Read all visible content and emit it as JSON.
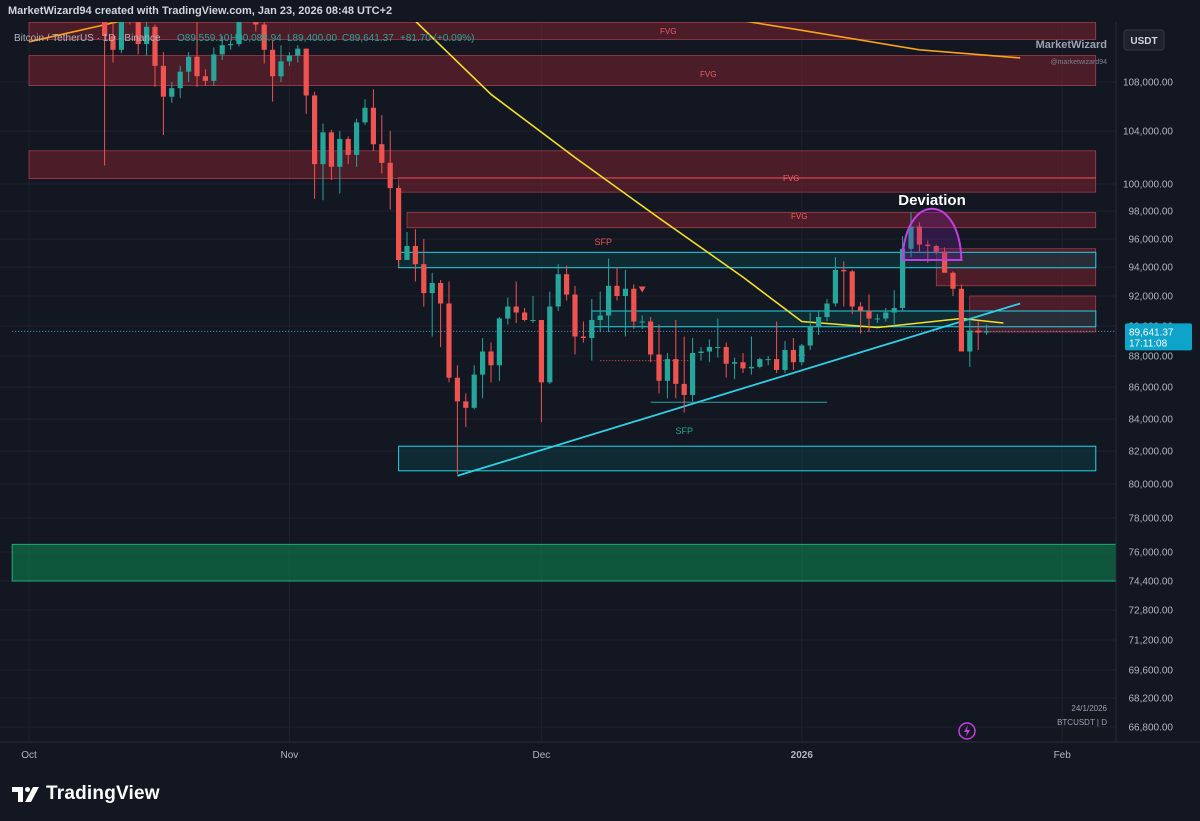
{
  "header": {
    "credit": "MarketWizard94 created with TradingView.com, Jan 23, 2026 08:48 UTC+2"
  },
  "legend": {
    "symbol": "Bitcoin / TetherUS · 1D · Binance",
    "open": "O89,559.10",
    "high": "H90,088.94",
    "low": "L89,400.00",
    "close": "C89,641.37",
    "change": "+81.70 (+0.09%)"
  },
  "watermark": {
    "name": "MarketWizard",
    "handle": "@marketwizard94"
  },
  "currency_button": "USDT",
  "annotations": {
    "deviation": "Deviation",
    "sfp_top": "SFP",
    "sfp_bottom": "SFP",
    "fvg": "FVG"
  },
  "price_tag": {
    "price": "89,641.37",
    "countdown": "17:11:08"
  },
  "bottom_info": {
    "date": "24/1/2026",
    "symbol": "BTCUSDT | D"
  },
  "footer": {
    "brand": "TradingView"
  },
  "colors": {
    "background": "#131722",
    "up": "#26a69a",
    "down": "#ef5350",
    "ema_slow": "#f7a21b",
    "ema_fast": "#f5e028",
    "zone_red": "#b22833",
    "zone_cyan": "#22d3e8",
    "zone_green": "#0f8a54",
    "deviation_arc": "#c13fe0"
  },
  "chart_data": {
    "type": "candlestick",
    "symbol": "BTCUSDT",
    "timeframe": "1D",
    "x_tick_labels": [
      "Oct",
      "Nov",
      "Dec",
      "2026",
      "Feb"
    ],
    "y_tick_labels": [
      "108,000.00",
      "104,000.00",
      "100,000.00",
      "98,000.00",
      "96,000.00",
      "94,000.00",
      "92,000.00",
      "90,000.00",
      "88,000.00",
      "86,000.00",
      "84,000.00",
      "82,000.00",
      "80,000.00",
      "78,000.00",
      "76,000.00",
      "74,400.00",
      "72,800.00",
      "71,200.00",
      "69,600.00",
      "68,200.00",
      "66,800.00"
    ],
    "ohlc": [
      [
        "2025-10-10",
        114800,
        115400,
        101400,
        112000
      ],
      [
        "2025-10-11",
        112000,
        113200,
        109700,
        110800
      ],
      [
        "2025-10-12",
        110800,
        115600,
        110500,
        115100
      ],
      [
        "2025-10-13",
        115100,
        115800,
        113000,
        114400
      ],
      [
        "2025-10-14",
        114400,
        114800,
        110400,
        111300
      ],
      [
        "2025-10-15",
        111300,
        113500,
        110300,
        112800
      ],
      [
        "2025-10-16",
        112800,
        113000,
        107600,
        109400
      ],
      [
        "2025-10-17",
        109400,
        110600,
        103700,
        106800
      ],
      [
        "2025-10-18",
        106800,
        108000,
        106300,
        107500
      ],
      [
        "2025-10-19",
        107500,
        109400,
        106700,
        108900
      ],
      [
        "2025-10-20",
        108900,
        110600,
        108000,
        110200
      ],
      [
        "2025-10-21",
        110200,
        114000,
        107600,
        108500
      ],
      [
        "2025-10-22",
        108500,
        109100,
        107700,
        108100
      ],
      [
        "2025-10-23",
        108100,
        111000,
        107700,
        110400
      ],
      [
        "2025-10-24",
        110400,
        112000,
        109900,
        111200
      ],
      [
        "2025-10-25",
        111200,
        111600,
        110800,
        111300
      ],
      [
        "2025-10-26",
        111300,
        115400,
        111100,
        114600
      ],
      [
        "2025-10-27",
        114600,
        116400,
        114000,
        115400
      ],
      [
        "2025-10-28",
        115400,
        116000,
        112400,
        113000
      ],
      [
        "2025-10-29",
        113000,
        113700,
        109600,
        110800
      ],
      [
        "2025-10-30",
        110800,
        111600,
        106400,
        108500
      ],
      [
        "2025-10-31",
        108500,
        111200,
        108000,
        109800
      ],
      [
        "2025-11-01",
        109800,
        110600,
        109400,
        110300
      ],
      [
        "2025-11-02",
        110300,
        111200,
        109700,
        110900
      ],
      [
        "2025-11-03",
        110900,
        110900,
        105400,
        106900
      ],
      [
        "2025-11-04",
        106900,
        107200,
        98900,
        101500
      ],
      [
        "2025-11-05",
        101500,
        104600,
        98800,
        103900
      ],
      [
        "2025-11-06",
        103900,
        104100,
        100300,
        101300
      ],
      [
        "2025-11-07",
        101300,
        104000,
        99300,
        103400
      ],
      [
        "2025-11-08",
        103400,
        103600,
        101500,
        102200
      ],
      [
        "2025-11-09",
        102200,
        105000,
        101300,
        104700
      ],
      [
        "2025-11-10",
        104700,
        106600,
        104500,
        105900
      ],
      [
        "2025-11-11",
        105900,
        107400,
        102500,
        103000
      ],
      [
        "2025-11-12",
        103000,
        105300,
        100800,
        101600
      ],
      [
        "2025-11-13",
        101600,
        104000,
        98100,
        99700
      ],
      [
        "2025-11-14",
        99700,
        99900,
        94000,
        94500
      ],
      [
        "2025-11-15",
        94500,
        96500,
        94500,
        95500
      ],
      [
        "2025-11-16",
        95500,
        96700,
        93000,
        94200
      ],
      [
        "2025-11-17",
        94200,
        96000,
        91300,
        92200
      ],
      [
        "2025-11-18",
        92200,
        93600,
        89300,
        92900
      ],
      [
        "2025-11-19",
        92900,
        93100,
        88600,
        91500
      ],
      [
        "2025-11-20",
        91500,
        93000,
        86300,
        86600
      ],
      [
        "2025-11-21",
        86600,
        87400,
        80600,
        85100
      ],
      [
        "2025-11-22",
        85100,
        85600,
        83500,
        84700
      ],
      [
        "2025-11-23",
        84700,
        87400,
        84600,
        86800
      ],
      [
        "2025-11-24",
        86800,
        89200,
        85300,
        88300
      ],
      [
        "2025-11-25",
        88300,
        88900,
        86300,
        87400
      ],
      [
        "2025-11-26",
        87400,
        90600,
        86400,
        90500
      ],
      [
        "2025-11-27",
        90500,
        91900,
        90100,
        91300
      ],
      [
        "2025-11-28",
        91300,
        93000,
        90200,
        90900
      ],
      [
        "2025-11-29",
        90900,
        91200,
        90300,
        90400
      ],
      [
        "2025-11-30",
        90400,
        92000,
        90200,
        90400
      ],
      [
        "2025-12-01",
        90400,
        90400,
        83800,
        86300
      ],
      [
        "2025-12-02",
        86300,
        92300,
        86200,
        91300
      ],
      [
        "2025-12-03",
        91300,
        94200,
        91000,
        93500
      ],
      [
        "2025-12-04",
        93500,
        94100,
        91700,
        92100
      ],
      [
        "2025-12-05",
        92100,
        92700,
        88100,
        89300
      ],
      [
        "2025-12-06",
        89300,
        90300,
        88900,
        89200
      ],
      [
        "2025-12-07",
        89200,
        91800,
        87700,
        90400
      ],
      [
        "2025-12-08",
        90400,
        92300,
        89600,
        90700
      ],
      [
        "2025-12-09",
        90700,
        94600,
        89600,
        92700
      ],
      [
        "2025-12-10",
        92700,
        94000,
        91700,
        92000
      ],
      [
        "2025-12-11",
        92000,
        93800,
        89300,
        92500
      ],
      [
        "2025-12-12",
        92500,
        92800,
        89800,
        90300
      ],
      [
        "2025-12-13",
        90300,
        90700,
        89800,
        90300
      ],
      [
        "2025-12-14",
        90300,
        90600,
        87600,
        88100
      ],
      [
        "2025-12-15",
        88100,
        90100,
        85600,
        86400
      ],
      [
        "2025-12-16",
        86400,
        88200,
        85300,
        87800
      ],
      [
        "2025-12-17",
        87800,
        90400,
        85300,
        86200
      ],
      [
        "2025-12-18",
        86200,
        89300,
        84400,
        85500
      ],
      [
        "2025-12-19",
        85500,
        89200,
        85100,
        88200
      ],
      [
        "2025-12-20",
        88200,
        88600,
        87700,
        88300
      ],
      [
        "2025-12-21",
        88300,
        89100,
        87600,
        88600
      ],
      [
        "2025-12-22",
        88600,
        90500,
        87900,
        88600
      ],
      [
        "2025-12-23",
        88600,
        88900,
        86600,
        87500
      ],
      [
        "2025-12-24",
        87500,
        87900,
        86500,
        87600
      ],
      [
        "2025-12-25",
        87600,
        88200,
        86900,
        87200
      ],
      [
        "2025-12-26",
        87200,
        89300,
        86800,
        87300
      ],
      [
        "2025-12-27",
        87300,
        87900,
        87200,
        87800
      ],
      [
        "2025-12-28",
        87800,
        88000,
        87400,
        87800
      ],
      [
        "2025-12-29",
        87800,
        90300,
        86900,
        87100
      ],
      [
        "2025-12-30",
        87100,
        89000,
        86900,
        88400
      ],
      [
        "2025-12-31",
        88400,
        89200,
        87100,
        87600
      ],
      [
        "2026-01-01",
        87600,
        88800,
        87400,
        88700
      ],
      [
        "2026-01-02",
        88700,
        90900,
        88400,
        90000
      ],
      [
        "2026-01-03",
        90000,
        91000,
        89400,
        90600
      ],
      [
        "2026-01-04",
        90600,
        91800,
        90300,
        91500
      ],
      [
        "2026-01-05",
        91500,
        94700,
        91300,
        93800
      ],
      [
        "2026-01-06",
        93800,
        94400,
        91300,
        93700
      ],
      [
        "2026-01-07",
        93700,
        93800,
        90800,
        91300
      ],
      [
        "2026-01-08",
        91300,
        91600,
        89500,
        91000
      ],
      [
        "2026-01-09",
        91000,
        92100,
        89600,
        90500
      ],
      [
        "2026-01-10",
        90500,
        90800,
        90200,
        90500
      ],
      [
        "2026-01-11",
        90500,
        91200,
        90300,
        90900
      ],
      [
        "2026-01-12",
        90900,
        92400,
        90000,
        91200
      ],
      [
        "2026-01-13",
        91200,
        96200,
        91000,
        95300
      ],
      [
        "2026-01-14",
        95300,
        97900,
        94700,
        96900
      ],
      [
        "2026-01-15",
        96900,
        97200,
        95100,
        95600
      ],
      [
        "2026-01-16",
        95600,
        95900,
        94300,
        95500
      ],
      [
        "2026-01-17",
        95500,
        95600,
        94900,
        95100
      ],
      [
        "2026-01-18",
        95100,
        95400,
        93700,
        93600
      ],
      [
        "2026-01-19",
        93600,
        93700,
        92000,
        92500
      ],
      [
        "2026-01-20",
        92500,
        92800,
        88300,
        88300
      ],
      [
        "2026-01-21",
        88300,
        90400,
        87300,
        89700
      ],
      [
        "2026-01-22",
        89700,
        90300,
        88400,
        89560
      ],
      [
        "2026-01-23",
        89559.1,
        90088.94,
        89400,
        89641.37
      ]
    ],
    "indicators": [
      {
        "kind": "moving average (orange)",
        "points": [
          [
            "2025-10-01",
            111500
          ],
          [
            "2025-10-15",
            113800
          ],
          [
            "2025-11-01",
            114900
          ],
          [
            "2025-11-15",
            115900
          ],
          [
            "2025-12-01",
            115600
          ],
          [
            "2025-12-15",
            114500
          ],
          [
            "2026-01-01",
            112500
          ],
          [
            "2026-01-15",
            110800
          ],
          [
            "2026-01-27",
            110100
          ]
        ]
      },
      {
        "kind": "moving average (yellow)",
        "points": [
          [
            "2025-11-03",
            116500
          ],
          [
            "2025-11-15",
            114000
          ],
          [
            "2025-11-25",
            107000
          ],
          [
            "2025-12-05",
            102000
          ],
          [
            "2025-12-15",
            97500
          ],
          [
            "2025-12-25",
            93300
          ],
          [
            "2026-01-01",
            90300
          ],
          [
            "2026-01-10",
            89900
          ],
          [
            "2026-01-20",
            90500
          ],
          [
            "2026-01-25",
            90200
          ]
        ]
      }
    ],
    "zones": [
      {
        "color": "red",
        "label": "FVG",
        "from": "2025-10-01",
        "to": "2026-02-05",
        "low": 111700,
        "high": 113200
      },
      {
        "color": "red",
        "label": "FVG",
        "from": "2025-10-01",
        "to": "2026-02-05",
        "low": 107700,
        "high": 110300
      },
      {
        "color": "red",
        "label": "",
        "from": "2025-10-01",
        "to": "2026-02-05",
        "low": 100400,
        "high": 102500
      },
      {
        "color": "red",
        "label": "FVG",
        "from": "2025-11-14",
        "to": "2026-02-05",
        "low": 99400,
        "high": 100500
      },
      {
        "color": "red",
        "label": "FVG",
        "from": "2025-11-15",
        "to": "2026-02-05",
        "low": 96800,
        "high": 97900
      },
      {
        "color": "red",
        "label": "",
        "from": "2026-01-17",
        "to": "2026-02-05",
        "low": 92700,
        "high": 95300
      },
      {
        "color": "red",
        "label": "",
        "from": "2026-01-21",
        "to": "2026-02-05",
        "low": 89600,
        "high": 92000
      },
      {
        "color": "cyan",
        "label": "",
        "from": "2025-11-14",
        "to": "2026-02-05",
        "low": 93950,
        "high": 95050
      },
      {
        "color": "cyan",
        "label": "",
        "from": "2025-12-07",
        "to": "2026-02-05",
        "low": 89950,
        "high": 91000
      },
      {
        "color": "cyan",
        "label": "",
        "from": "2025-11-14",
        "to": "2026-02-05",
        "low": 80800,
        "high": 82300
      },
      {
        "color": "green",
        "label": "",
        "from": "2025-09-29",
        "to": "2026-02-15",
        "low": 74400,
        "high": 76450
      }
    ],
    "trendlines": [
      {
        "color": "cyan",
        "from": [
          "2025-11-21",
          80500
        ],
        "to": [
          "2026-01-27",
          91500
        ]
      }
    ],
    "horizontal_lines": [
      {
        "color": "teal",
        "style": "solid",
        "from": "2025-12-14",
        "to": "2026-01-04",
        "price": 85050
      },
      {
        "color": "red",
        "style": "dotted",
        "from": "2025-12-08",
        "to": "2025-12-19",
        "price": 87700
      },
      {
        "color": "cyan",
        "style": "dotted",
        "from": "2025-09-29",
        "to": "2026-02-15",
        "price": 89641.37
      }
    ],
    "markers": [
      {
        "shape": "triangle-down",
        "color": "red",
        "date": "2025-12-13",
        "price": 92450
      },
      {
        "shape": "triangle-up",
        "color": "green",
        "date": "2026-01-01",
        "price": 88200
      }
    ],
    "price_label_markers": [
      {
        "text": "SFP",
        "date": "2025-12-08",
        "price": 96100
      },
      {
        "text": "SFP",
        "date": "2025-12-18",
        "price": 83500
      }
    ],
    "deviation_arc": {
      "from": "2026-01-13",
      "to": "2026-01-20",
      "top": 98400,
      "base": 94500
    }
  }
}
